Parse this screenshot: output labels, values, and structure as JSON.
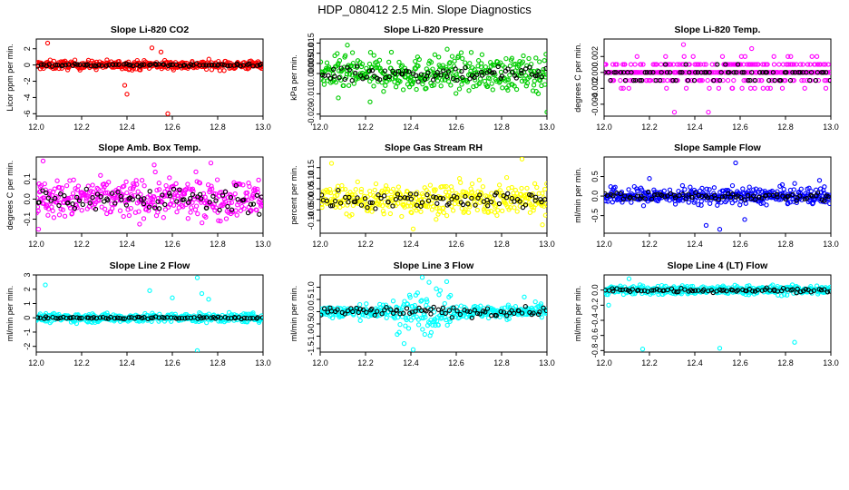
{
  "title": "HDP_080412  2.5 Min. Slope Diagnostics",
  "chart_data": [
    {
      "type": "scatter",
      "title": "Slope Li-820 CO2",
      "ylabel": "Licor ppm per min.",
      "color": "#ff0000",
      "xlim": [
        12.0,
        13.0
      ],
      "ylim": [
        -6.3,
        3.2
      ],
      "yticks": [
        -6,
        -4,
        -2,
        0,
        2
      ],
      "ytick_labels": [
        "-6",
        "-4",
        "-2",
        "0",
        "2"
      ],
      "xticks": [
        12.0,
        12.2,
        12.4,
        12.6,
        12.8,
        13.0
      ],
      "xtick_labels": [
        "12.0",
        "12.2",
        "12.4",
        "12.6",
        "12.8",
        "13.0"
      ],
      "spread": 0.45,
      "black_spread": 0.15,
      "outliers": [
        [
          12.05,
          2.7
        ],
        [
          12.39,
          -2.5
        ],
        [
          12.4,
          -3.6
        ],
        [
          12.51,
          2.1
        ],
        [
          12.55,
          1.6
        ],
        [
          12.58,
          -6.0
        ]
      ]
    },
    {
      "type": "scatter",
      "title": "Slope Li-820 Pressure",
      "ylabel": "kPa per min.",
      "color": "#00cc00",
      "xlim": [
        12.0,
        13.0
      ],
      "ylim": [
        -0.021,
        0.017
      ],
      "yticks": [
        -0.02,
        -0.01,
        0.0,
        0.005,
        0.01,
        0.015
      ],
      "ytick_labels": [
        "-0.020",
        "-0.010",
        "0.000",
        "0.005",
        "0.010",
        "0.015"
      ],
      "xticks": [
        12.0,
        12.2,
        12.4,
        12.6,
        12.8,
        13.0
      ],
      "xtick_labels": [
        "12.0",
        "12.2",
        "12.4",
        "12.6",
        "12.8",
        "13.0"
      ],
      "spread": 0.007,
      "black_spread": 0.004,
      "outliers": [
        [
          12.08,
          -0.012
        ],
        [
          12.22,
          -0.014
        ],
        [
          13.0,
          -0.019
        ],
        [
          12.12,
          0.014
        ],
        [
          12.56,
          0.012
        ]
      ]
    },
    {
      "type": "scatter",
      "title": "Slope Li-820 Temp.",
      "ylabel": "degrees C per min.",
      "color": "#ff00ff",
      "xlim": [
        12.0,
        13.0
      ],
      "ylim": [
        -0.0055,
        0.0042
      ],
      "yticks": [
        -0.004,
        -0.002,
        0.0,
        0.002
      ],
      "ytick_labels": [
        "-0.004",
        "-0.002",
        "0.000",
        "0.002"
      ],
      "xticks": [
        12.0,
        12.2,
        12.4,
        12.6,
        12.8,
        13.0
      ],
      "xtick_labels": [
        "12.0",
        "12.2",
        "12.4",
        "12.6",
        "12.8",
        "13.0"
      ],
      "spread": 0.0015,
      "black_spread": 0.0009,
      "quantum": 0.001,
      "outliers": [
        [
          12.31,
          -0.005
        ],
        [
          12.46,
          -0.005
        ],
        [
          12.35,
          0.0035
        ]
      ]
    },
    {
      "type": "scatter",
      "title": "Slope Amb. Box Temp.",
      "ylabel": "degrees C per min.",
      "color": "#ff00ff",
      "xlim": [
        12.0,
        13.0
      ],
      "ylim": [
        -0.17,
        0.21
      ],
      "yticks": [
        -0.1,
        0.0,
        0.1
      ],
      "ytick_labels": [
        "-0.1",
        "0.0",
        "0.1"
      ],
      "xticks": [
        12.0,
        12.2,
        12.4,
        12.6,
        12.8,
        13.0
      ],
      "xtick_labels": [
        "12.0",
        "12.2",
        "12.4",
        "12.6",
        "12.8",
        "13.0"
      ],
      "spread": 0.08,
      "black_spread": 0.06,
      "outliers": [
        [
          12.01,
          -0.15
        ],
        [
          12.03,
          0.19
        ],
        [
          12.52,
          0.17
        ],
        [
          12.77,
          0.18
        ]
      ]
    },
    {
      "type": "scatter",
      "title": "Slope Gas Stream RH",
      "ylabel": "percent per min.",
      "color": "#ffff00",
      "xlim": [
        12.0,
        13.0
      ],
      "ylim": [
        -0.16,
        0.2
      ],
      "yticks": [
        -0.1,
        -0.05,
        0.0,
        0.05,
        0.1,
        0.15
      ],
      "ytick_labels": [
        "-0.10",
        "-0.05",
        "0.00",
        "0.05",
        "0.10",
        "0.15"
      ],
      "xticks": [
        12.0,
        12.2,
        12.4,
        12.6,
        12.8,
        13.0
      ],
      "xtick_labels": [
        "12.0",
        "12.2",
        "12.4",
        "12.6",
        "12.8",
        "13.0"
      ],
      "spread": 0.06,
      "black_spread": 0.04,
      "outliers": [
        [
          12.05,
          0.17
        ],
        [
          12.89,
          0.19
        ],
        [
          12.98,
          -0.12
        ],
        [
          12.41,
          -0.14
        ]
      ]
    },
    {
      "type": "scatter",
      "title": "Slope Sample Flow",
      "ylabel": "ml/min per min.",
      "color": "#0000ff",
      "xlim": [
        12.0,
        13.0
      ],
      "ylim": [
        -0.95,
        1.0
      ],
      "yticks": [
        -0.5,
        0.0,
        0.5
      ],
      "ytick_labels": [
        "-0.5",
        "0.0",
        "0.5"
      ],
      "xticks": [
        12.0,
        12.2,
        12.4,
        12.6,
        12.8,
        13.0
      ],
      "xtick_labels": [
        "12.0",
        "12.2",
        "12.4",
        "12.6",
        "12.8",
        "13.0"
      ],
      "spread": 0.18,
      "black_spread": 0.1,
      "outliers": [
        [
          12.58,
          0.85
        ],
        [
          12.45,
          -0.75
        ],
        [
          12.51,
          -0.85
        ],
        [
          12.2,
          0.45
        ],
        [
          12.95,
          0.4
        ],
        [
          12.62,
          -0.6
        ]
      ]
    },
    {
      "type": "scatter",
      "title": "Slope Line 2 Flow",
      "ylabel": "ml/min per min.",
      "color": "#00ffff",
      "xlim": [
        12.0,
        13.0
      ],
      "ylim": [
        -2.4,
        3.0
      ],
      "yticks": [
        -2,
        -1,
        0,
        1,
        2,
        3
      ],
      "ytick_labels": [
        "-2",
        "-1",
        "0",
        "1",
        "2",
        "3"
      ],
      "xticks": [
        12.0,
        12.2,
        12.4,
        12.6,
        12.8,
        13.0
      ],
      "xtick_labels": [
        "12.0",
        "12.2",
        "12.4",
        "12.6",
        "12.8",
        "13.0"
      ],
      "spread": 0.25,
      "black_spread": 0.08,
      "outliers": [
        [
          12.04,
          2.3
        ],
        [
          12.71,
          2.8
        ],
        [
          12.73,
          1.7
        ],
        [
          12.71,
          -2.3
        ],
        [
          12.5,
          1.9
        ],
        [
          12.76,
          1.3
        ],
        [
          12.6,
          1.4
        ]
      ]
    },
    {
      "type": "scatter",
      "title": "Slope Line 3 Flow",
      "ylabel": "ml/min per min.",
      "color": "#00ffff",
      "xlim": [
        12.0,
        13.0
      ],
      "ylim": [
        -1.65,
        1.5
      ],
      "yticks": [
        -1.5,
        -1.0,
        -0.5,
        0.0,
        0.5,
        1.0
      ],
      "ytick_labels": [
        "-1.5",
        "-1.0",
        "-0.5",
        "0.0",
        "0.5",
        "1.0"
      ],
      "xticks": [
        12.0,
        12.2,
        12.4,
        12.6,
        12.8,
        13.0
      ],
      "xtick_labels": [
        "12.0",
        "12.2",
        "12.4",
        "12.6",
        "12.8",
        "13.0"
      ],
      "spread": 0.22,
      "black_spread": 0.2,
      "burst": [
        12.32,
        12.58,
        0.7
      ],
      "outliers": [
        [
          12.45,
          1.4
        ],
        [
          12.48,
          1.2
        ],
        [
          12.41,
          -1.55
        ],
        [
          12.37,
          -1.3
        ],
        [
          12.9,
          0.6
        ]
      ]
    },
    {
      "type": "scatter",
      "title": "Slope Line 4 (LT) Flow",
      "ylabel": "ml/min per min.",
      "color": "#00ffff",
      "xlim": [
        12.0,
        13.0
      ],
      "ylim": [
        -0.82,
        0.2
      ],
      "yticks": [
        -0.8,
        -0.6,
        -0.4,
        -0.2,
        0.0
      ],
      "ytick_labels": [
        "-0.8",
        "-0.6",
        "-0.4",
        "-0.2",
        "0.0"
      ],
      "xticks": [
        12.0,
        12.2,
        12.4,
        12.6,
        12.8,
        13.0
      ],
      "xtick_labels": [
        "12.0",
        "12.2",
        "12.4",
        "12.6",
        "12.8",
        "13.0"
      ],
      "spread": 0.05,
      "black_spread": 0.03,
      "outliers": [
        [
          12.11,
          0.15
        ],
        [
          12.17,
          -0.78
        ],
        [
          12.51,
          -0.77
        ],
        [
          12.84,
          -0.69
        ],
        [
          12.02,
          -0.2
        ]
      ]
    }
  ]
}
